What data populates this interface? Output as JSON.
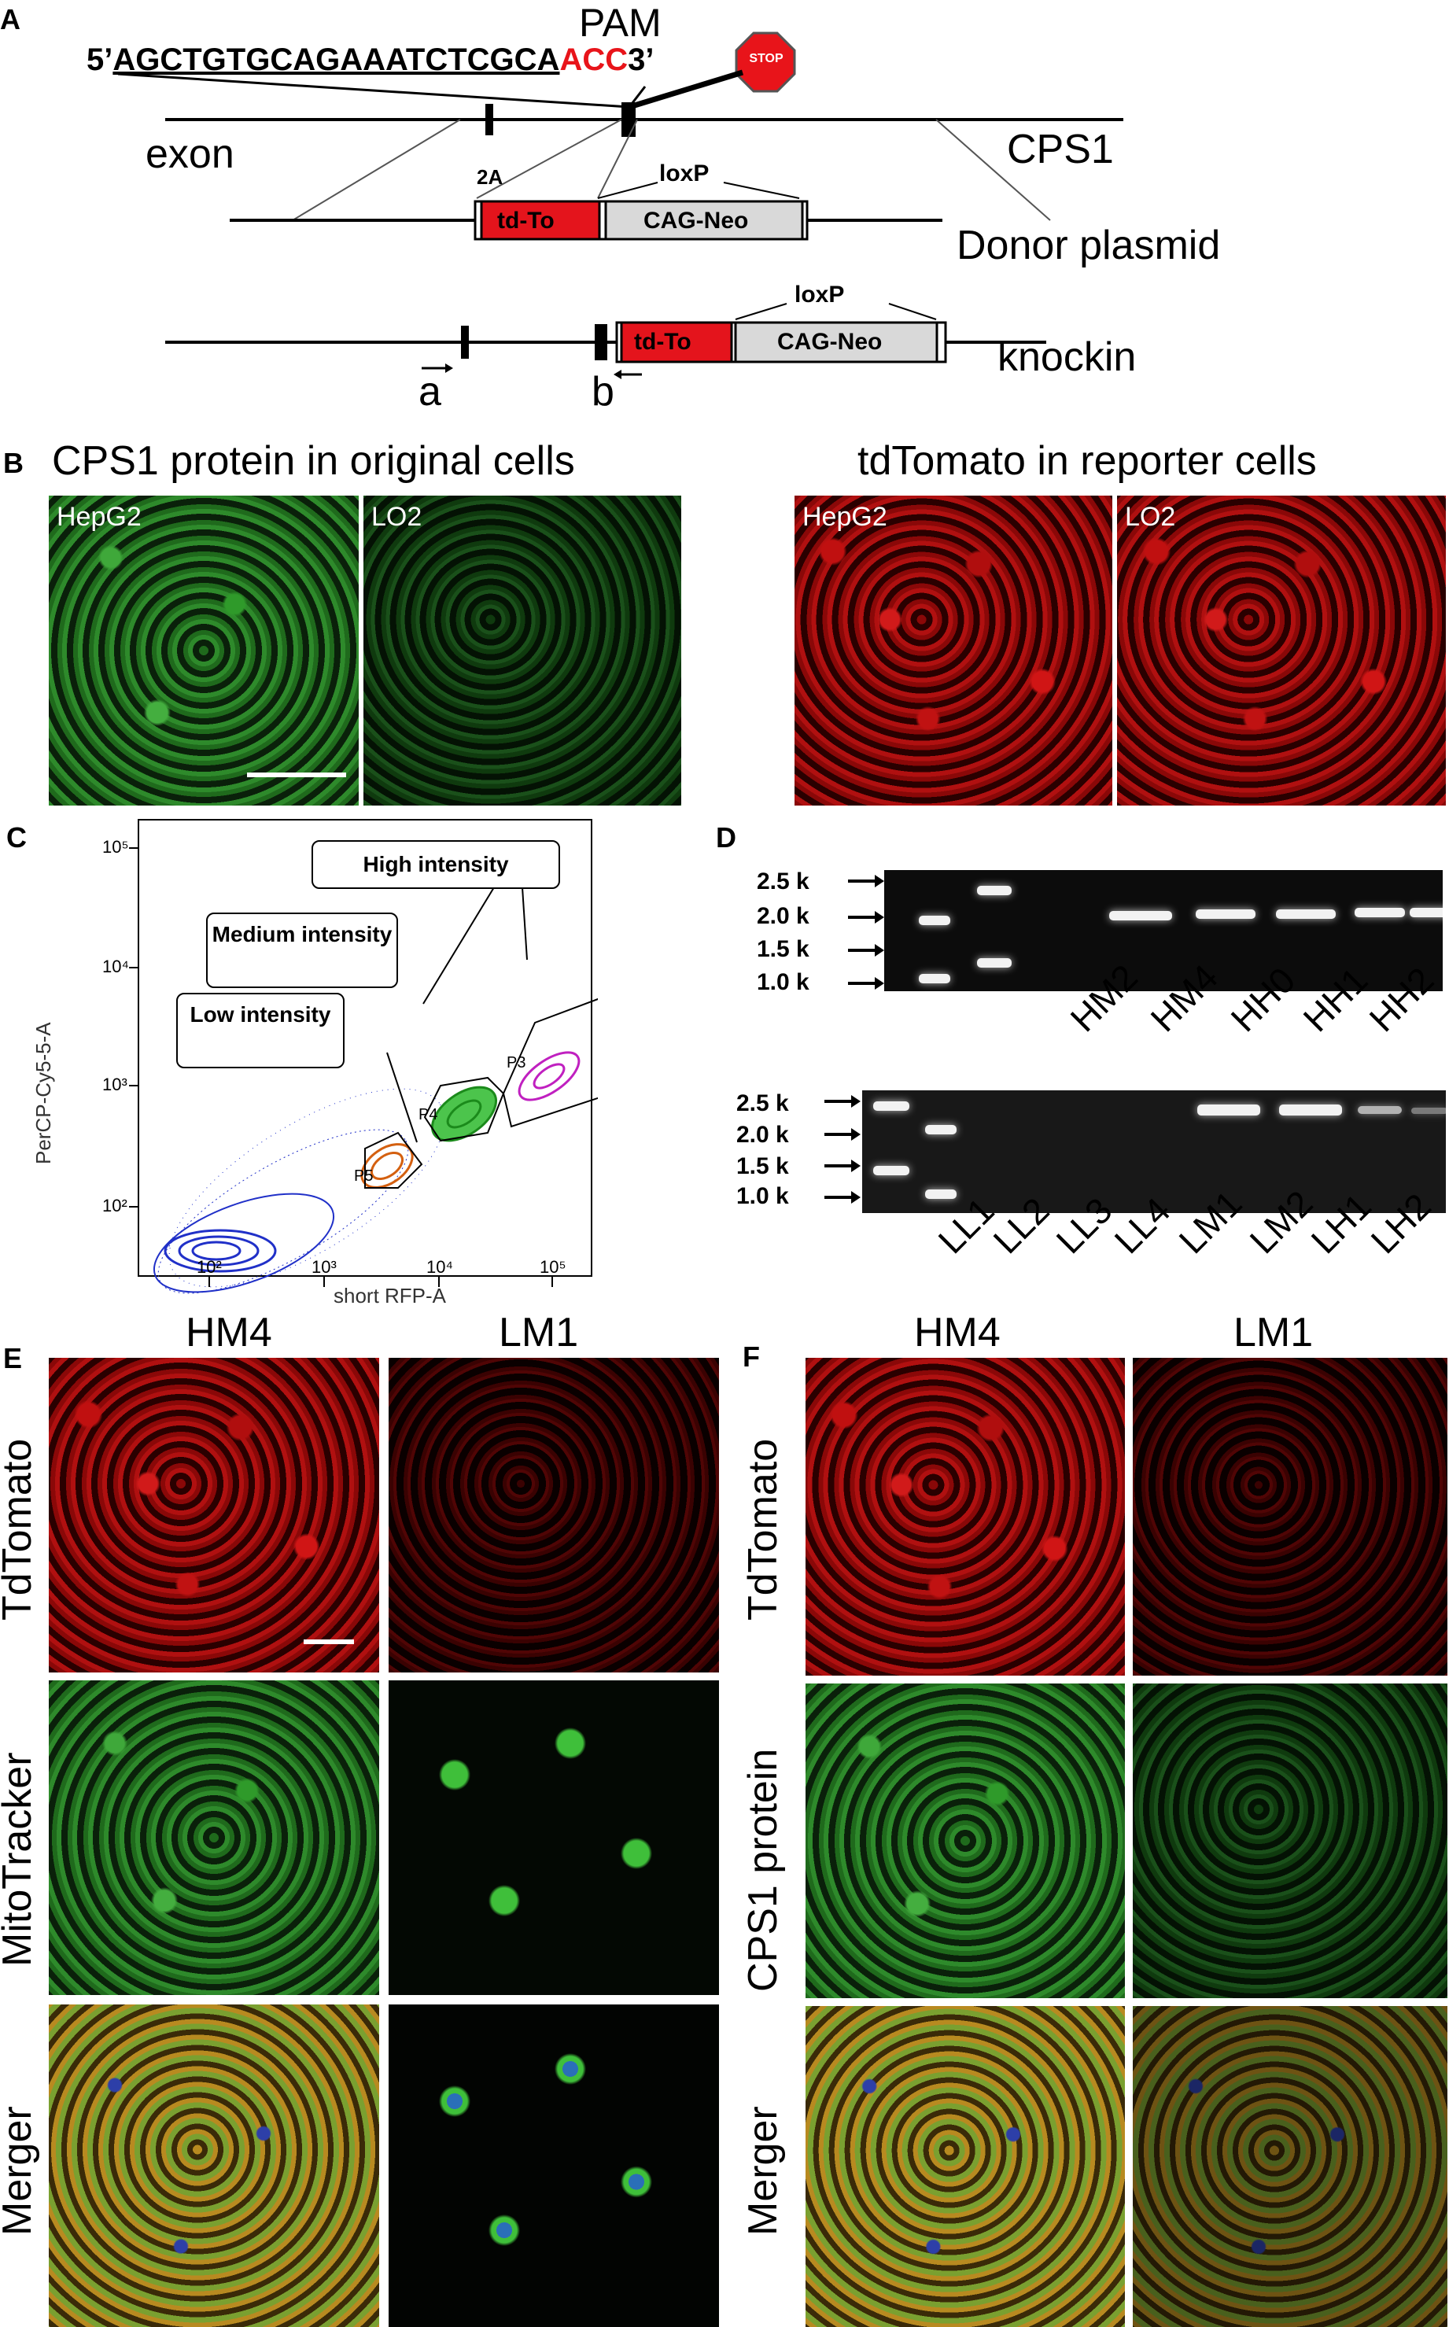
{
  "panels": {
    "a": "A",
    "b": "B",
    "c": "C",
    "d": "D",
    "e": "E",
    "f": "F"
  },
  "panelA": {
    "pam": "PAM",
    "seq_prefix": "5’",
    "seq_main": "AGCTGTGCAGAAATCTCGCA",
    "seq_pam": "ACC",
    "seq_suffix": "3’",
    "stop": "STOP",
    "exon": "exon",
    "gene": "CPS1",
    "two_a": "2A",
    "loxp1": "loxP",
    "td_to1": "td-To",
    "cag_neo1": "CAG-Neo",
    "donor": "Donor plasmid",
    "loxp2": "loxP",
    "td_to2": "td-To",
    "cag_neo2": "CAG-Neo",
    "knockin": "knockin",
    "primer_a": "a",
    "primer_b": "b",
    "colors": {
      "pam": "#e8141a",
      "box": "#e4141c",
      "stop": "#e8141a"
    }
  },
  "panelB": {
    "title_left": "CPS1 protein in original cells",
    "title_right": "tdTomato in reporter cells",
    "img1": "HepG2",
    "img2": "LO2",
    "img3": "HepG2",
    "img4": "LO2"
  },
  "panelC": {
    "ylabel": "PerCP-Cy5-5-A",
    "xlabel": "short RFP-A",
    "xticks": [
      "10²",
      "10³",
      "10⁴",
      "10⁵"
    ],
    "yticks": [
      "10⁵",
      "10⁴",
      "10³",
      "10²"
    ],
    "gates": [
      "P5",
      "P4",
      "P3"
    ],
    "boxes": [
      "High intensity",
      "Medium intensity",
      "Low intensity"
    ]
  },
  "panelD": {
    "sizes_top": [
      "2.5 k",
      "2.0 k",
      "1.5 k",
      "1.0 k"
    ],
    "sizes_bottom": [
      "2.5 k",
      "2.0 k",
      "1.5 k",
      "1.0 k"
    ],
    "lanes_top": [
      "HM2",
      "HM4",
      "HH0",
      "HH1",
      "HH2"
    ],
    "lanes_bottom": [
      "LL1",
      "LL2",
      "LL3",
      "LL4",
      "LM1",
      "LM2",
      "LH1",
      "LH2"
    ]
  },
  "panelE": {
    "col1": "HM4",
    "col2": "LM1",
    "row1": "TdTomato",
    "row2": "MitoTracker",
    "row3": "Merger"
  },
  "panelF": {
    "col1": "HM4",
    "col2": "LM1",
    "row1": "TdTomato",
    "row2": "CPS1 protein",
    "row3": "Merger"
  }
}
